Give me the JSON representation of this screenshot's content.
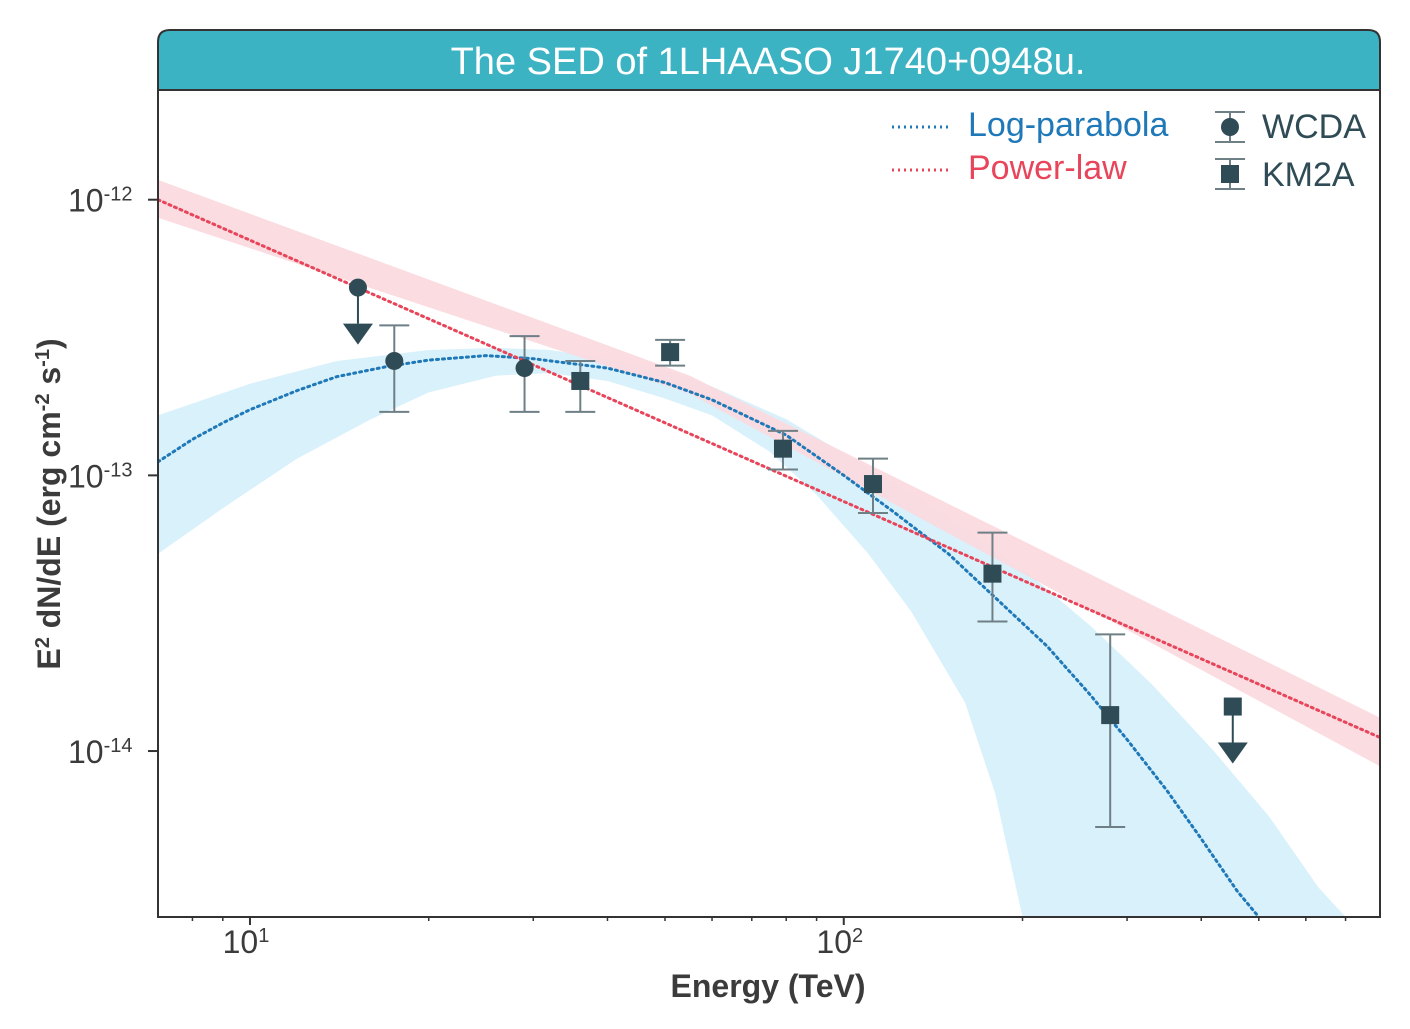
{
  "chart_data": {
    "type": "scatter",
    "title": "The SED of 1LHAASO J1740+0948u.",
    "xlabel": "Energy (TeV)",
    "ylabel": "E2 dN/dE (erg cm-2 s-1)",
    "ylabel_parts": {
      "a": "E",
      "a_sup": "2",
      "b": " dN/dE (erg cm",
      "b_sup": "-2",
      "c": " s",
      "c_sup": "-1",
      "d": ")"
    },
    "xscale": "log",
    "yscale": "log",
    "xlim": [
      7.0,
      800
    ],
    "ylim": [
      2.5e-15,
      2.5e-12
    ],
    "xticks": [
      {
        "value": 10,
        "base": "10",
        "exp": "1"
      },
      {
        "value": 100,
        "base": "10",
        "exp": "2"
      }
    ],
    "yticks": [
      {
        "value": 1e-12,
        "base": "10",
        "exp": "-12"
      },
      {
        "value": 1e-13,
        "base": "10",
        "exp": "-13"
      },
      {
        "value": 1e-14,
        "base": "10",
        "exp": "-14"
      }
    ],
    "colors": {
      "title_bg": "#3bb3c3",
      "data": "#2f4b55",
      "logparabola": "#1f78b8",
      "logparabola_band": "#d6f0fb",
      "powerlaw": "#e8455a",
      "powerlaw_band": "#fadadf"
    },
    "legend": {
      "position": "top-right",
      "models": [
        {
          "key": "logparabola",
          "label": "Log-parabola"
        },
        {
          "key": "powerlaw",
          "label": "Power-law"
        }
      ],
      "data": [
        {
          "key": "wcda",
          "label": "WCDA",
          "marker": "circle"
        },
        {
          "key": "km2a",
          "label": "KM2A",
          "marker": "square"
        }
      ]
    },
    "series": [
      {
        "name": "WCDA",
        "marker": "circle",
        "points": [
          {
            "x": 15.2,
            "y": 4.8e-13,
            "upper_limit": true
          },
          {
            "x": 17.5,
            "y": 2.6e-13,
            "ylo": 1.7e-13,
            "yhi": 3.5e-13
          },
          {
            "x": 29.0,
            "y": 2.45e-13,
            "ylo": 1.7e-13,
            "yhi": 3.2e-13
          }
        ]
      },
      {
        "name": "KM2A",
        "marker": "square",
        "points": [
          {
            "x": 36.0,
            "y": 2.2e-13,
            "ylo": 1.7e-13,
            "yhi": 2.6e-13
          },
          {
            "x": 51.0,
            "y": 2.8e-13,
            "ylo": 2.5e-13,
            "yhi": 3.1e-13
          },
          {
            "x": 79.0,
            "y": 1.25e-13,
            "ylo": 1.05e-13,
            "yhi": 1.45e-13
          },
          {
            "x": 112.0,
            "y": 9.3e-14,
            "ylo": 7.3e-14,
            "yhi": 1.15e-13
          },
          {
            "x": 178.0,
            "y": 4.4e-14,
            "ylo": 2.95e-14,
            "yhi": 6.2e-14
          },
          {
            "x": 281.0,
            "y": 1.35e-14,
            "ylo": 5.3e-15,
            "yhi": 2.65e-14
          },
          {
            "x": 452.0,
            "y": 1.45e-14,
            "upper_limit": true
          }
        ]
      }
    ],
    "models": {
      "logparabola": {
        "label": "Log-parabola",
        "curve": [
          [
            7.0,
            1.12e-13
          ],
          [
            8.0,
            1.35e-13
          ],
          [
            9.0,
            1.55e-13
          ],
          [
            10.0,
            1.73e-13
          ],
          [
            12.0,
            2.03e-13
          ],
          [
            14.0,
            2.28e-13
          ],
          [
            17.0,
            2.48e-13
          ],
          [
            20.0,
            2.62e-13
          ],
          [
            25.0,
            2.72e-13
          ],
          [
            30.0,
            2.65e-13
          ],
          [
            40.0,
            2.45e-13
          ],
          [
            50.0,
            2.17e-13
          ],
          [
            60.0,
            1.88e-13
          ],
          [
            80.0,
            1.4e-13
          ],
          [
            100.0,
            1e-13
          ],
          [
            120.0,
            7.5e-14
          ],
          [
            150.0,
            5.2e-14
          ],
          [
            180.0,
            3.6e-14
          ],
          [
            220.0,
            2.4e-14
          ],
          [
            260.0,
            1.6e-14
          ],
          [
            300.0,
            1.1e-14
          ],
          [
            350.0,
            7.2e-15
          ],
          [
            400.0,
            4.8e-15
          ],
          [
            460.0,
            3.1e-15
          ],
          [
            500.0,
            2.5e-15
          ]
        ],
        "band_upper": [
          [
            7.0,
            1.65e-13
          ],
          [
            10.0,
            2.15e-13
          ],
          [
            14.0,
            2.6e-13
          ],
          [
            20.0,
            2.85e-13
          ],
          [
            26.0,
            2.9e-13
          ],
          [
            32.0,
            2.85e-13
          ],
          [
            40.0,
            2.65e-13
          ],
          [
            50.0,
            2.4e-13
          ],
          [
            60.0,
            2.1e-13
          ],
          [
            80.0,
            1.6e-13
          ],
          [
            100.0,
            1.2e-13
          ],
          [
            130.0,
            8.6e-14
          ],
          [
            165.0,
            6.1e-14
          ],
          [
            210.0,
            4.2e-14
          ],
          [
            260.0,
            2.85e-14
          ],
          [
            330.0,
            1.75e-14
          ],
          [
            420.0,
            1e-14
          ],
          [
            520.0,
            5.8e-15
          ],
          [
            630.0,
            3.2e-15
          ],
          [
            700.0,
            2.5e-15
          ]
        ],
        "band_lower": [
          [
            7.0,
            5.2e-14
          ],
          [
            9.0,
            7.6e-14
          ],
          [
            12.0,
            1.15e-13
          ],
          [
            16.0,
            1.6e-13
          ],
          [
            20.0,
            2e-13
          ],
          [
            26.0,
            2.3e-13
          ],
          [
            32.0,
            2.35e-13
          ],
          [
            40.0,
            2.2e-13
          ],
          [
            50.0,
            1.9e-13
          ],
          [
            60.0,
            1.65e-13
          ],
          [
            75.0,
            1.22e-13
          ],
          [
            90.0,
            8.5e-14
          ],
          [
            110.0,
            5.2e-14
          ],
          [
            130.0,
            3.2e-14
          ],
          [
            160.0,
            1.5e-14
          ],
          [
            180.0,
            7e-15
          ],
          [
            200.0,
            2.5e-15
          ]
        ]
      },
      "powerlaw": {
        "label": "Power-law",
        "points": [
          [
            7.0,
            1e-12
          ],
          [
            800.0,
            1.12e-14
          ]
        ],
        "band_upper": [
          [
            7.0,
            1.18e-12
          ],
          [
            55.0,
            2.3e-13
          ],
          [
            800.0,
            1.32e-14
          ]
        ],
        "band_lower": [
          [
            7.0,
            8.6e-13
          ],
          [
            55.0,
            1.98e-13
          ],
          [
            800.0,
            8.8e-15
          ]
        ]
      }
    }
  }
}
